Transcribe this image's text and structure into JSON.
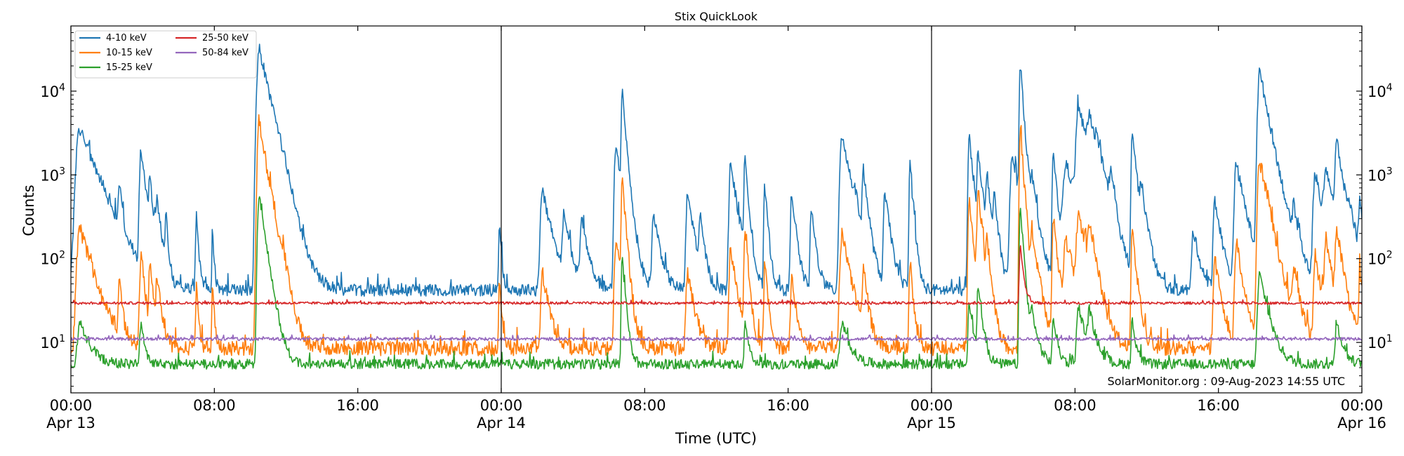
{
  "chart_data": {
    "type": "line",
    "title": "Stix QuickLook",
    "xlabel": "Time (UTC)",
    "ylabel": "Counts",
    "yscale": "log",
    "ylim": [
      2.5,
      60000
    ],
    "x_unit": "hours since Apr 13 00:00",
    "xlim": [
      0,
      72
    ],
    "x_ticks": [
      {
        "x": 0,
        "time": "00:00",
        "date": "Apr 13"
      },
      {
        "x": 8,
        "time": "08:00",
        "date": ""
      },
      {
        "x": 16,
        "time": "16:00",
        "date": ""
      },
      {
        "x": 24,
        "time": "00:00",
        "date": "Apr 14"
      },
      {
        "x": 32,
        "time": "08:00",
        "date": ""
      },
      {
        "x": 40,
        "time": "16:00",
        "date": ""
      },
      {
        "x": 48,
        "time": "00:00",
        "date": "Apr 15"
      },
      {
        "x": 56,
        "time": "08:00",
        "date": ""
      },
      {
        "x": 64,
        "time": "16:00",
        "date": ""
      },
      {
        "x": 72,
        "time": "00:00",
        "date": "Apr 16"
      }
    ],
    "y_ticks": [
      {
        "value": 10,
        "base": "10",
        "exp": "1"
      },
      {
        "value": 100,
        "base": "10",
        "exp": "2"
      },
      {
        "value": 1000,
        "base": "10",
        "exp": "3"
      },
      {
        "value": 10000,
        "base": "10",
        "exp": "4"
      }
    ],
    "day_boundaries": [
      24,
      48
    ],
    "legend_position": "upper-left",
    "credit": "SolarMonitor.org : 09-Aug-2023 14:55 UTC",
    "series": [
      {
        "name": "4-10 keV",
        "color": "#1f77b4",
        "base": 42,
        "noise": 0.12,
        "peak_scale": 1.0,
        "peaks": [
          [
            0.5,
            3500,
            0.8
          ],
          [
            2.7,
            700,
            0.12
          ],
          [
            3.9,
            1800,
            0.25
          ],
          [
            4.4,
            650,
            0.15
          ],
          [
            4.8,
            400,
            0.2
          ],
          [
            5.3,
            330,
            0.1
          ],
          [
            7.0,
            330,
            0.1
          ],
          [
            7.9,
            190,
            0.08
          ],
          [
            10.5,
            33000,
            0.45
          ],
          [
            11.9,
            180,
            0.2
          ],
          [
            23.9,
            240,
            0.1
          ],
          [
            26.3,
            620,
            0.4
          ],
          [
            27.5,
            280,
            0.3
          ],
          [
            28.5,
            230,
            0.3
          ],
          [
            30.4,
            2200,
            0.3
          ],
          [
            30.75,
            9500,
            0.15
          ],
          [
            31.1,
            200,
            0.3
          ],
          [
            32.5,
            300,
            0.3
          ],
          [
            34.4,
            550,
            0.3
          ],
          [
            35.1,
            230,
            0.2
          ],
          [
            36.8,
            1300,
            0.3
          ],
          [
            37.6,
            1600,
            0.15
          ],
          [
            38.7,
            700,
            0.15
          ],
          [
            40.2,
            600,
            0.2
          ],
          [
            41.3,
            350,
            0.2
          ],
          [
            43.0,
            3000,
            0.4
          ],
          [
            43.7,
            230,
            0.2
          ],
          [
            44.2,
            1000,
            0.2
          ],
          [
            45.4,
            550,
            0.25
          ],
          [
            46.8,
            1300,
            0.15
          ],
          [
            50.1,
            2900,
            0.2
          ],
          [
            50.6,
            1800,
            0.2
          ],
          [
            51.1,
            850,
            0.2
          ],
          [
            51.5,
            400,
            0.2
          ],
          [
            52.5,
            1600,
            0.4
          ],
          [
            52.95,
            20000,
            0.15
          ],
          [
            53.6,
            600,
            0.3
          ],
          [
            54.8,
            1500,
            0.2
          ],
          [
            55.5,
            1300,
            0.6
          ],
          [
            56.2,
            6000,
            0.5
          ],
          [
            56.8,
            3400,
            0.4
          ],
          [
            57.2,
            1000,
            0.3
          ],
          [
            58.0,
            700,
            0.2
          ],
          [
            59.2,
            3300,
            0.2
          ],
          [
            59.7,
            500,
            0.3
          ],
          [
            62.6,
            180,
            0.3
          ],
          [
            63.8,
            470,
            0.3
          ],
          [
            65.0,
            1300,
            0.4
          ],
          [
            66.3,
            17000,
            0.4
          ],
          [
            68.2,
            250,
            0.3
          ],
          [
            69.4,
            1000,
            0.4
          ],
          [
            70.0,
            1000,
            0.4
          ],
          [
            70.6,
            2300,
            0.3
          ],
          [
            71.3,
            200,
            0.4
          ],
          [
            71.9,
            400,
            0.2
          ]
        ]
      },
      {
        "name": "10-15 keV",
        "color": "#ff7f0e",
        "base": 8.5,
        "noise": 0.15,
        "peak_scale": 0.45,
        "peaks": [
          [
            0.5,
            220,
            0.6
          ],
          [
            2.7,
            40,
            0.15
          ],
          [
            3.9,
            100,
            0.2
          ],
          [
            4.4,
            80,
            0.15
          ],
          [
            4.8,
            50,
            0.2
          ],
          [
            7.0,
            45,
            0.1
          ],
          [
            7.9,
            35,
            0.1
          ],
          [
            10.5,
            4200,
            0.35
          ],
          [
            11.9,
            30,
            0.2
          ],
          [
            23.9,
            50,
            0.1
          ],
          [
            26.3,
            60,
            0.3
          ],
          [
            30.4,
            160,
            0.3
          ],
          [
            30.75,
            900,
            0.15
          ],
          [
            34.4,
            60,
            0.3
          ],
          [
            36.8,
            120,
            0.3
          ],
          [
            37.6,
            230,
            0.15
          ],
          [
            38.7,
            80,
            0.15
          ],
          [
            40.2,
            60,
            0.2
          ],
          [
            43.0,
            180,
            0.4
          ],
          [
            44.2,
            60,
            0.2
          ],
          [
            46.8,
            90,
            0.15
          ],
          [
            50.1,
            500,
            0.2
          ],
          [
            50.6,
            600,
            0.2
          ],
          [
            51.1,
            120,
            0.2
          ],
          [
            52.95,
            3500,
            0.15
          ],
          [
            53.6,
            180,
            0.3
          ],
          [
            54.8,
            300,
            0.2
          ],
          [
            55.5,
            150,
            0.5
          ],
          [
            56.2,
            300,
            0.4
          ],
          [
            56.8,
            200,
            0.3
          ],
          [
            59.2,
            200,
            0.2
          ],
          [
            63.8,
            90,
            0.3
          ],
          [
            65.0,
            150,
            0.3
          ],
          [
            66.3,
            1500,
            0.4
          ],
          [
            68.2,
            60,
            0.3
          ],
          [
            69.4,
            100,
            0.3
          ],
          [
            70.0,
            150,
            0.3
          ],
          [
            70.6,
            200,
            0.3
          ],
          [
            71.9,
            60,
            0.2
          ]
        ]
      },
      {
        "name": "15-25 keV",
        "color": "#2ca02c",
        "base": 5.5,
        "noise": 0.1,
        "peak_scale": 0.15,
        "peaks": [
          [
            0.5,
            12,
            0.5
          ],
          [
            3.9,
            11,
            0.2
          ],
          [
            10.5,
            550,
            0.3
          ],
          [
            30.75,
            100,
            0.15
          ],
          [
            37.6,
            15,
            0.15
          ],
          [
            43.0,
            12,
            0.4
          ],
          [
            50.1,
            25,
            0.2
          ],
          [
            50.6,
            40,
            0.2
          ],
          [
            52.95,
            420,
            0.15
          ],
          [
            53.6,
            15,
            0.3
          ],
          [
            54.8,
            14,
            0.2
          ],
          [
            56.2,
            20,
            0.4
          ],
          [
            56.8,
            15,
            0.3
          ],
          [
            59.2,
            12,
            0.2
          ],
          [
            66.3,
            60,
            0.4
          ],
          [
            70.6,
            12,
            0.3
          ]
        ]
      },
      {
        "name": "25-50 keV",
        "color": "#d62728",
        "base": 29.5,
        "noise": 0.025,
        "peak_scale": 0,
        "peaks": [
          [
            52.95,
            120,
            0.15
          ]
        ]
      },
      {
        "name": "50-84 keV",
        "color": "#9467bd",
        "base": 11,
        "noise": 0.03,
        "peak_scale": 0,
        "peaks": []
      }
    ]
  }
}
